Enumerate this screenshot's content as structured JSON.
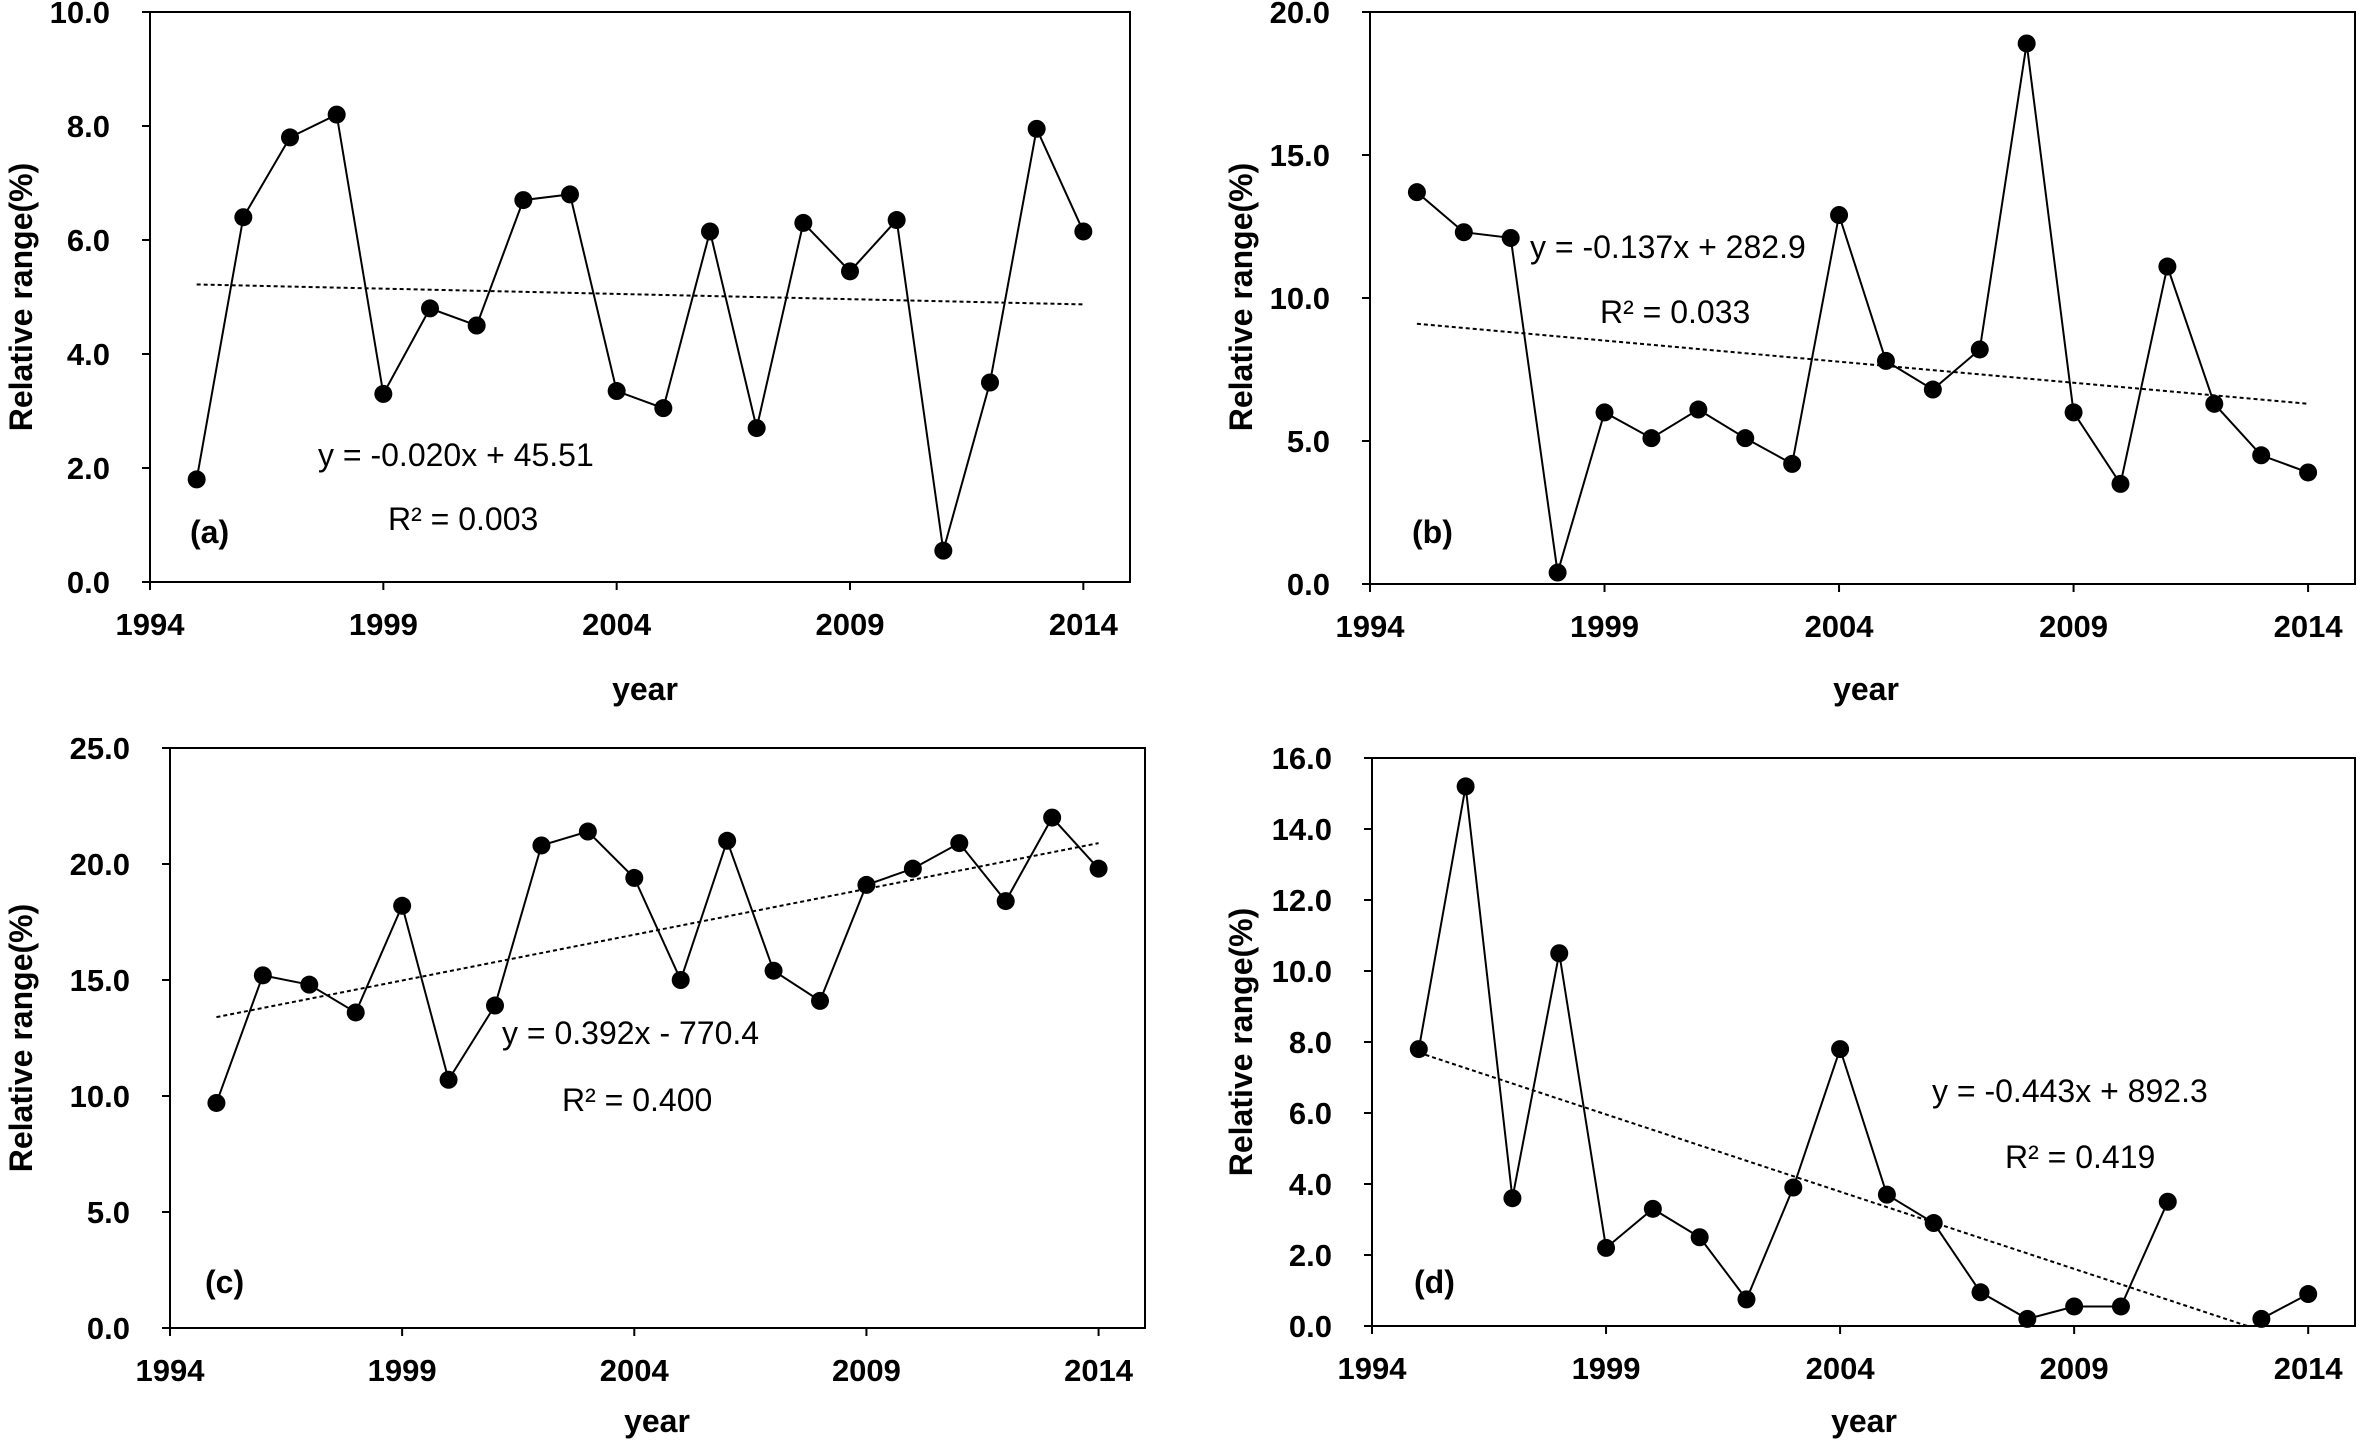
{
  "chart_data": [
    {
      "panel": "(a)",
      "type": "line",
      "xlabel": "year",
      "ylabel": "Relative range(%)",
      "xlim": [
        1994,
        2015
      ],
      "ylim": [
        0,
        10
      ],
      "x_ticks": [
        "1994",
        "1999",
        "2004",
        "2009",
        "2014"
      ],
      "y_ticks": [
        "0.0",
        "2.0",
        "4.0",
        "6.0",
        "8.0",
        "10.0"
      ],
      "series": [
        {
          "x": [
            1995,
            1996,
            1997,
            1998,
            1999,
            2000,
            2001,
            2002,
            2003,
            2004,
            2005,
            2006,
            2007,
            2008,
            2009,
            2010,
            2011,
            2012,
            2013,
            2014
          ],
          "values": [
            1.8,
            6.4,
            7.8,
            8.2,
            3.3,
            4.8,
            4.5,
            6.7,
            6.8,
            3.35,
            3.05,
            6.15,
            2.7,
            6.3,
            5.45,
            6.35,
            0.55,
            3.5,
            7.95,
            6.15
          ]
        }
      ],
      "trendline": {
        "equation": "y = -0.020x  + 45.51",
        "r2": "R² = 0.003",
        "x": [
          1995,
          2014
        ],
        "y": [
          5.22,
          4.87
        ]
      }
    },
    {
      "panel": "(b)",
      "type": "line",
      "xlabel": "year",
      "ylabel": "Relative range(%)",
      "xlim": [
        1994,
        2015
      ],
      "ylim": [
        0,
        20
      ],
      "x_ticks": [
        "1994",
        "1999",
        "2004",
        "2009",
        "2014"
      ],
      "y_ticks": [
        "0.0",
        "5.0",
        "10.0",
        "15.0",
        "20.0"
      ],
      "series": [
        {
          "x": [
            1995,
            1996,
            1997,
            1998,
            1999,
            2000,
            2001,
            2002,
            2003,
            2004,
            2005,
            2006,
            2007,
            2008,
            2009,
            2010,
            2011,
            2012,
            2013,
            2014
          ],
          "values": [
            13.7,
            12.3,
            12.1,
            0.4,
            6.0,
            5.1,
            6.1,
            5.1,
            4.2,
            12.9,
            7.8,
            6.8,
            8.2,
            18.9,
            6.0,
            3.5,
            11.1,
            6.3,
            4.5,
            3.9
          ]
        }
      ],
      "trendline": {
        "equation": "y = -0.137x  + 282.9",
        "r2": "R² = 0.033",
        "x": [
          1995,
          2014
        ],
        "y": [
          9.1,
          6.3
        ]
      }
    },
    {
      "panel": "(c)",
      "type": "line",
      "xlabel": "year",
      "ylabel": "Relative range(%)",
      "xlim": [
        1994,
        2015
      ],
      "ylim": [
        0,
        25
      ],
      "x_ticks": [
        "1994",
        "1999",
        "2004",
        "2009",
        "2014"
      ],
      "y_ticks": [
        "0.0",
        "5.0",
        "10.0",
        "15.0",
        "20.0",
        "25.0"
      ],
      "series": [
        {
          "x": [
            1995,
            1996,
            1997,
            1998,
            1999,
            2000,
            2001,
            2002,
            2003,
            2004,
            2005,
            2006,
            2007,
            2008,
            2009,
            2010,
            2011,
            2012,
            2013,
            2014
          ],
          "values": [
            9.7,
            15.2,
            14.8,
            13.6,
            18.2,
            10.7,
            13.9,
            20.8,
            21.4,
            19.4,
            15.0,
            21.0,
            15.4,
            14.1,
            19.1,
            19.8,
            20.9,
            18.4,
            22.0,
            19.8
          ]
        }
      ],
      "trendline": {
        "equation": "y = 0.392x  - 770.4",
        "r2": "R² = 0.400",
        "x": [
          1995,
          2014
        ],
        "y": [
          13.4,
          20.9
        ]
      }
    },
    {
      "panel": "(d)",
      "type": "line",
      "xlabel": "year",
      "ylabel": "Relative range(%)",
      "xlim": [
        1994,
        2015
      ],
      "ylim": [
        0,
        16
      ],
      "x_ticks": [
        "1994",
        "1999",
        "2004",
        "2009",
        "2014"
      ],
      "y_ticks": [
        "0.0",
        "2.0",
        "4.0",
        "6.0",
        "8.0",
        "10.0",
        "12.0",
        "14.0",
        "16.0"
      ],
      "series": [
        {
          "x": [
            1995,
            1996,
            1997,
            1998,
            1999,
            2000,
            2001,
            2002,
            2003,
            2004,
            2005,
            2006,
            2007,
            2008,
            2009,
            2010,
            2011
          ],
          "values": [
            7.8,
            15.2,
            3.6,
            10.5,
            2.2,
            3.3,
            2.5,
            0.75,
            3.9,
            7.8,
            3.7,
            2.9,
            0.95,
            0.2,
            0.55,
            0.55,
            3.5
          ]
        },
        {
          "x": [
            2013,
            2014
          ],
          "values": [
            0.2,
            0.9
          ]
        }
      ],
      "trendline": {
        "equation": "y = -0.443x  + 892.3",
        "r2": "R² = 0.419",
        "x": [
          1995,
          2012.7
        ],
        "y": [
          7.7,
          0.0
        ]
      }
    }
  ]
}
